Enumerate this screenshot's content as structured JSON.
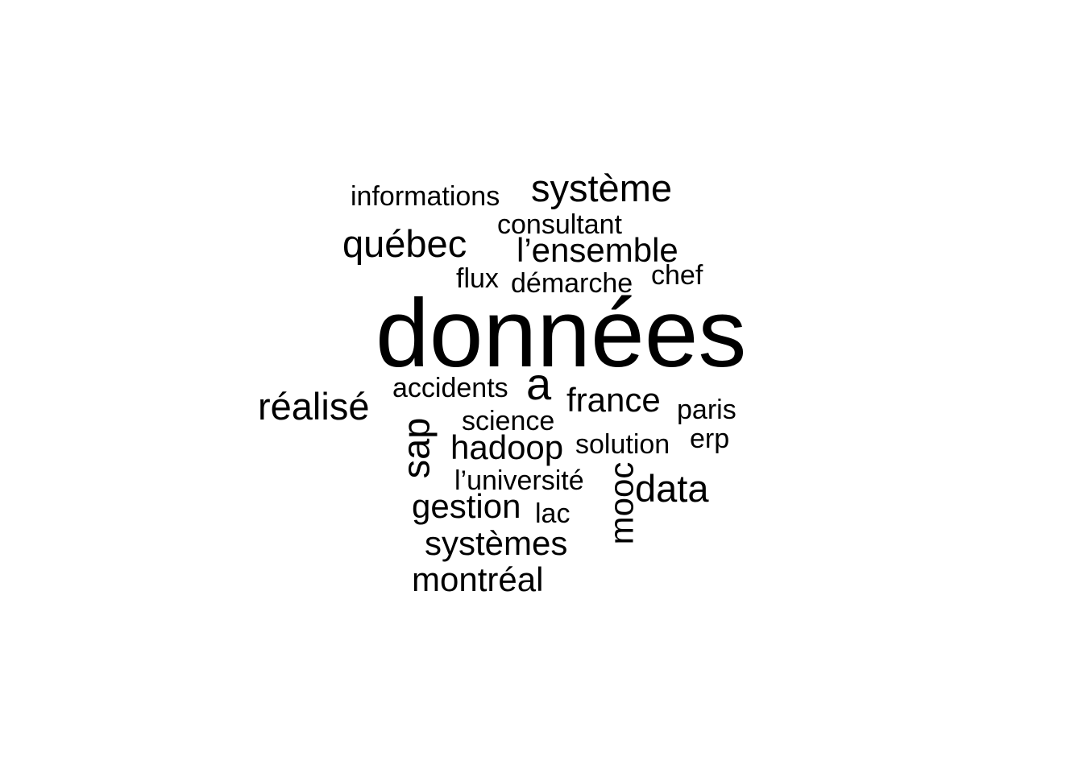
{
  "word_cloud": {
    "words": [
      {
        "key": "donnees",
        "text": "données"
      },
      {
        "key": "informations",
        "text": "informations"
      },
      {
        "key": "systeme",
        "text": "système"
      },
      {
        "key": "consultant",
        "text": "consultant"
      },
      {
        "key": "quebec",
        "text": "québec"
      },
      {
        "key": "lensemble",
        "text": "l’ensemble"
      },
      {
        "key": "flux",
        "text": "flux"
      },
      {
        "key": "demarche",
        "text": "démarche"
      },
      {
        "key": "chef",
        "text": "chef"
      },
      {
        "key": "a",
        "text": "a"
      },
      {
        "key": "accidents",
        "text": "accidents"
      },
      {
        "key": "realise",
        "text": "réalisé"
      },
      {
        "key": "france",
        "text": "france"
      },
      {
        "key": "paris",
        "text": "paris"
      },
      {
        "key": "science",
        "text": "science"
      },
      {
        "key": "sap",
        "text": "sap"
      },
      {
        "key": "hadoop",
        "text": "hadoop"
      },
      {
        "key": "solution",
        "text": "solution"
      },
      {
        "key": "erp",
        "text": "erp"
      },
      {
        "key": "luniversite",
        "text": "l’université"
      },
      {
        "key": "data",
        "text": "data"
      },
      {
        "key": "mooc",
        "text": "mooc"
      },
      {
        "key": "gestion",
        "text": "gestion"
      },
      {
        "key": "lac",
        "text": "lac"
      },
      {
        "key": "systemes",
        "text": "systèmes"
      },
      {
        "key": "montreal",
        "text": "montréal"
      }
    ]
  }
}
